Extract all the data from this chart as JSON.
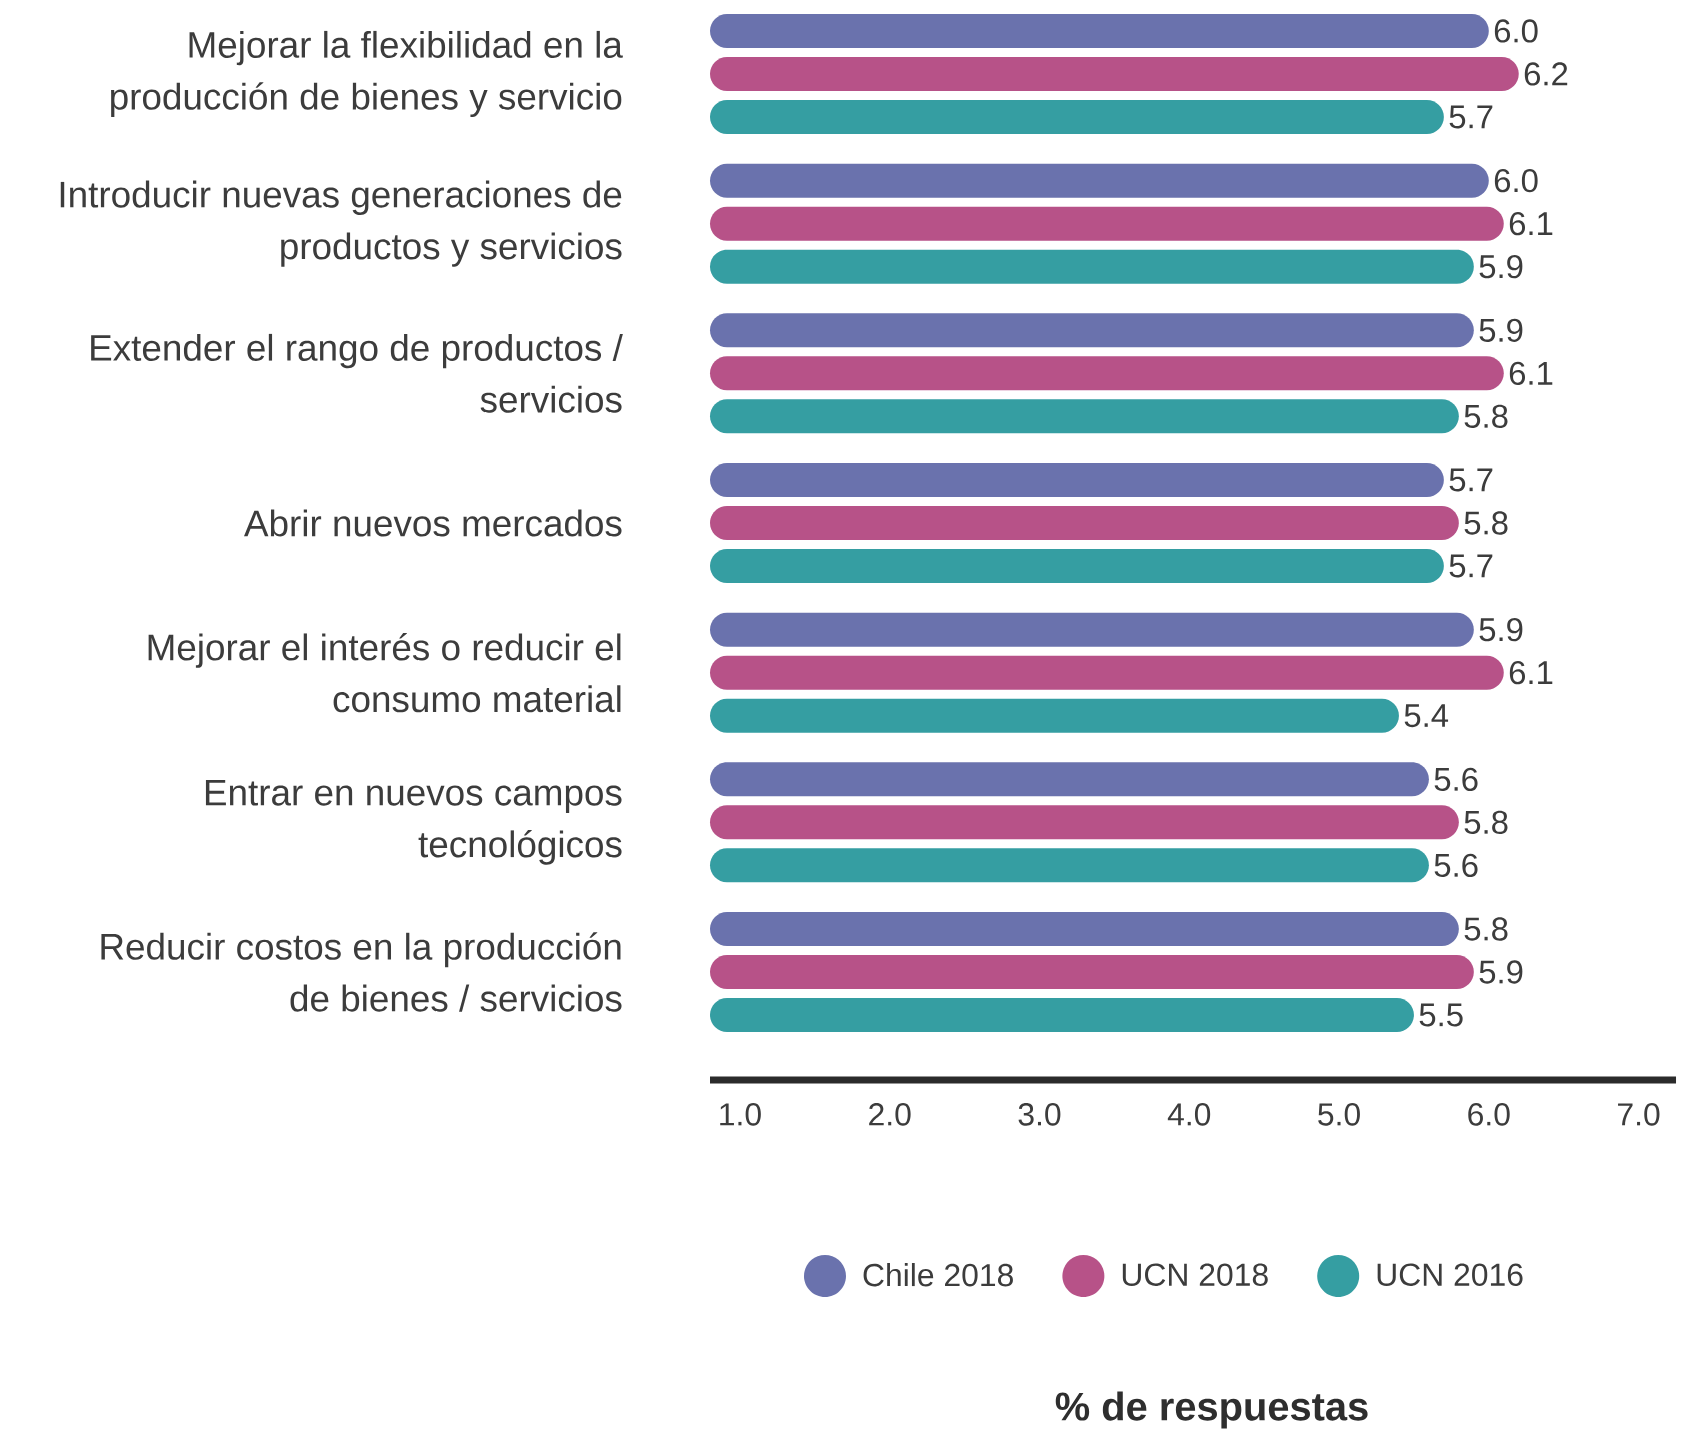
{
  "chart_data": {
    "type": "bar",
    "orientation": "horizontal",
    "categories": [
      "Mejorar la flexibilidad en la producción de bienes y servicio",
      "Introducir nuevas generaciones de productos y servicios",
      "Extender el rango de productos / servicios",
      "Abrir nuevos mercados",
      "Mejorar el interés o reducir el consumo material",
      "Entrar en nuevos campos tecnológicos",
      "Reducir costos en la producción de bienes / servicios"
    ],
    "series": [
      {
        "name": "Chile 2018",
        "color": "#6a72ad",
        "values": [
          6.0,
          6.0,
          5.9,
          5.7,
          5.9,
          5.6,
          5.8
        ],
        "value_labels": [
          "6.0",
          "6.0",
          "5.9",
          "5.7",
          "5.9",
          "5.6",
          "5.8"
        ]
      },
      {
        "name": "UCN 2018",
        "color": "#b75288",
        "values": [
          6.2,
          6.1,
          6.1,
          5.8,
          6.1,
          5.8,
          5.9
        ],
        "value_labels": [
          "6.2",
          "6.1",
          "6.1",
          "5.8",
          "6.1",
          "5.8",
          "5.9"
        ]
      },
      {
        "name": "UCN 2016",
        "color": "#359ea2",
        "values": [
          5.7,
          5.9,
          5.8,
          5.7,
          5.4,
          5.6,
          5.5
        ],
        "value_labels": [
          "5.7",
          "5.9",
          "5.8",
          "5.7",
          "5.4",
          "5.6",
          "5.5"
        ]
      }
    ],
    "xlim": [
      0.8,
      7.25
    ],
    "xticks": [
      {
        "value": 1,
        "label": "1.0"
      },
      {
        "value": 2,
        "label": "2.0"
      },
      {
        "value": 3,
        "label": "3.0"
      },
      {
        "value": 4,
        "label": "4.0"
      },
      {
        "value": 5,
        "label": "5.0"
      },
      {
        "value": 6,
        "label": "6.0"
      },
      {
        "value": 7,
        "label": "7.0"
      }
    ],
    "annotations": [
      "% de respuestas"
    ],
    "legend": "bottom"
  }
}
